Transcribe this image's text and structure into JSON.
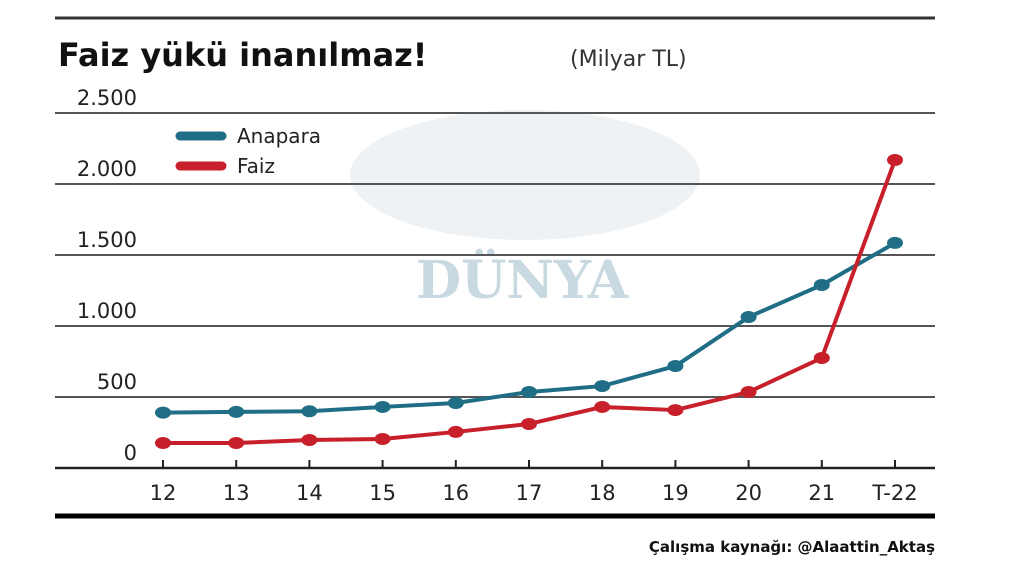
{
  "chart_data": {
    "type": "line",
    "title": "Faiz yükü inanılmaz!",
    "subtitle": "(Milyar TL)",
    "categories": [
      "12",
      "13",
      "14",
      "15",
      "16",
      "17",
      "18",
      "19",
      "20",
      "21",
      "T-22"
    ],
    "series": [
      {
        "name": "Anapara",
        "color": "#1f6e86",
        "values": [
          390,
          395,
          400,
          430,
          458,
          535,
          577,
          718,
          1063,
          1289,
          1585
        ]
      },
      {
        "name": "Faiz",
        "color": "#c8202a",
        "values": [
          176,
          176,
          197,
          204,
          254,
          310,
          430,
          408,
          535,
          775,
          2169
        ]
      }
    ],
    "yticks": [
      0,
      500,
      1000,
      1500,
      2000,
      2500
    ],
    "ytick_labels": [
      "0",
      "500",
      "1.000",
      "1.500",
      "2.000",
      "2.500"
    ],
    "ylim": [
      0,
      2500
    ],
    "grid": true,
    "legend_position": "top-left",
    "source": "Çalışma kaynağı: @Alaattin_Aktaş",
    "watermark": "DÜNYA"
  }
}
